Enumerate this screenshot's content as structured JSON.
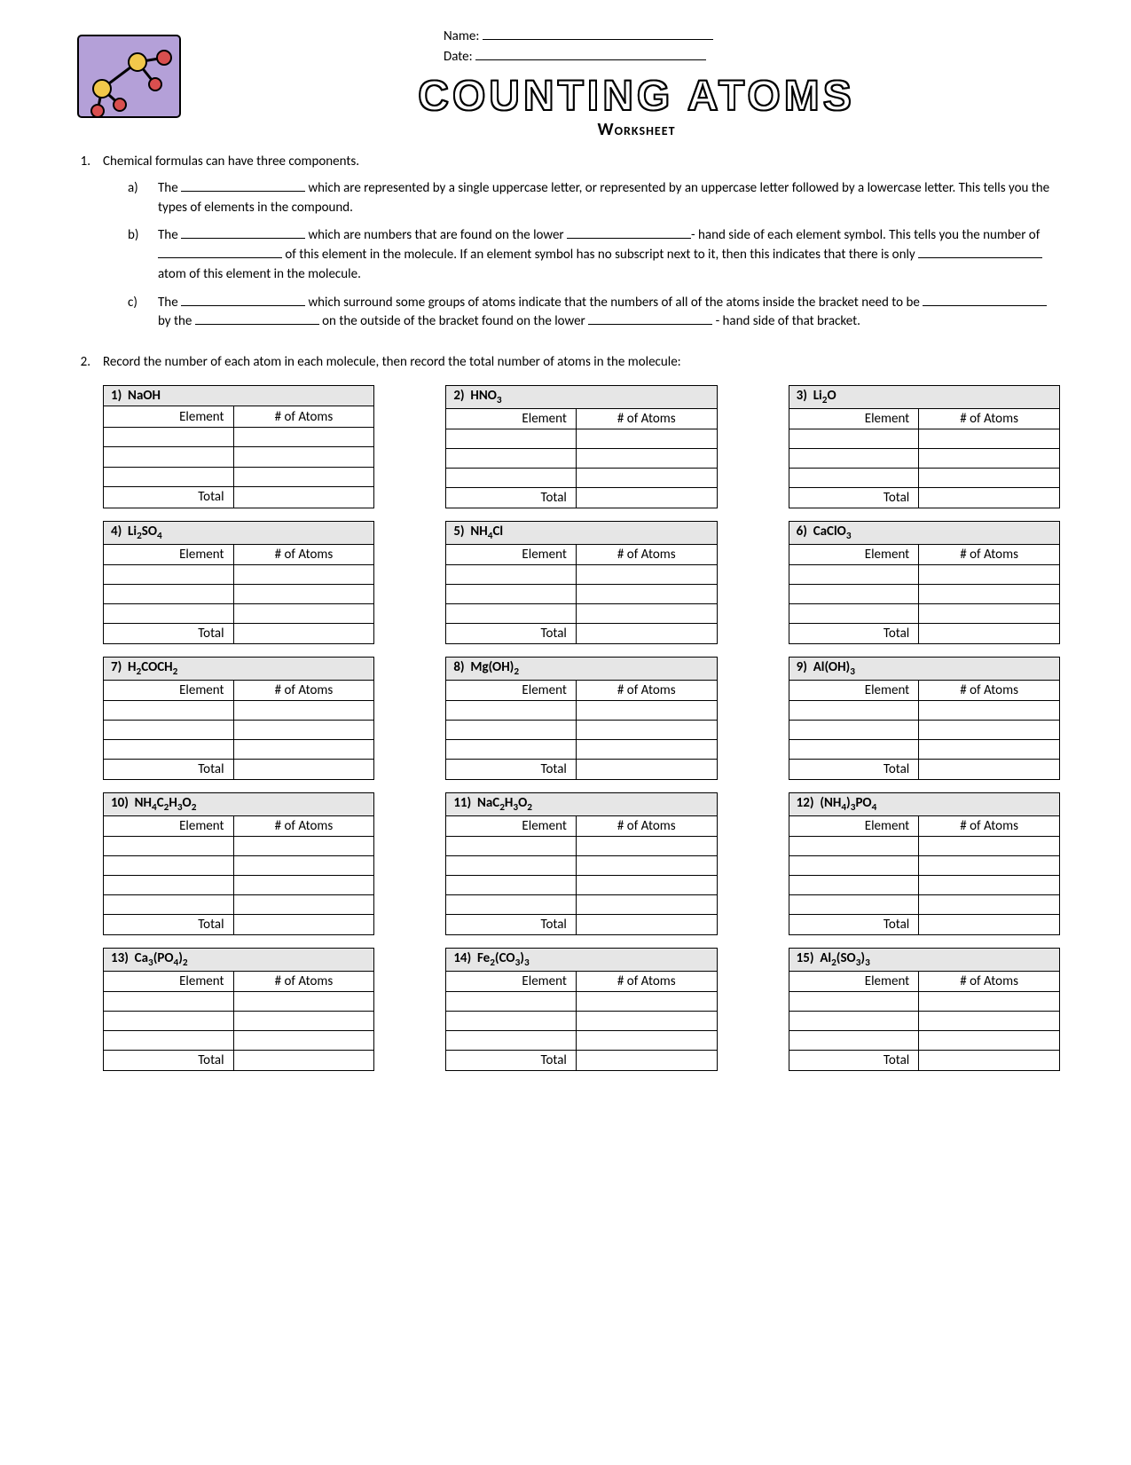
{
  "header": {
    "name_label": "Name:",
    "date_label": "Date:",
    "title": "COUNTING ATOMS",
    "subtitle": "Worksheet"
  },
  "q1": {
    "number": "1.",
    "intro": "Chemical formulas can have three components.",
    "a": {
      "letter": "a)",
      "t1": "The ",
      "t2": " which are represented by a single uppercase letter, or represented by an uppercase letter followed by a lowercase letter.  This tells you the types of elements in the compound."
    },
    "b": {
      "letter": "b)",
      "t1": "The ",
      "t2": " which are numbers that are found on the lower ",
      "t3": "- hand side of each element symbol.  This tells you the number of ",
      "t4": " of this element in the molecule.  If an element symbol has no subscript next to it, then this indicates that there is only ",
      "t5": " atom of this element in the molecule."
    },
    "c": {
      "letter": "c)",
      "t1": "The ",
      "t2": " which surround some groups of atoms indicate that the numbers of all of the atoms inside the bracket need to be ",
      "t3": " by the ",
      "t4": " on the outside of the bracket found on the lower ",
      "t5": " - hand side of that bracket."
    }
  },
  "q2": {
    "number": "2.",
    "text": "Record the number of each atom in each molecule, then record the total number of atoms in the molecule:"
  },
  "table_labels": {
    "element": "Element",
    "atoms": "# of Atoms",
    "total": "Total"
  },
  "molecules": [
    {
      "num": "1)",
      "formula": "NaOH",
      "rows": 3
    },
    {
      "num": "2)",
      "formula": "HNO<sub>3</sub>",
      "rows": 3
    },
    {
      "num": "3)",
      "formula": "Li<sub>2</sub>O",
      "rows": 3
    },
    {
      "num": "4)",
      "formula": "Li<sub>2</sub>SO<sub>4</sub>",
      "rows": 3
    },
    {
      "num": "5)",
      "formula": "NH<sub>4</sub>Cl",
      "rows": 3
    },
    {
      "num": "6)",
      "formula": "CaClO<sub>3</sub>",
      "rows": 3
    },
    {
      "num": "7)",
      "formula": "H<sub>2</sub>COCH<sub>2</sub>",
      "rows": 3
    },
    {
      "num": "8)",
      "formula": "Mg(OH)<sub>2</sub>",
      "rows": 3
    },
    {
      "num": "9)",
      "formula": "Al(OH)<sub>3</sub>",
      "rows": 3
    },
    {
      "num": "10)",
      "formula": "NH<sub>4</sub>C<sub>2</sub>H<sub>3</sub>O<sub>2</sub>",
      "rows": 4
    },
    {
      "num": "11)",
      "formula": "NaC<sub>2</sub>H<sub>3</sub>O<sub>2</sub>",
      "rows": 4
    },
    {
      "num": "12)",
      "formula": "(NH<sub>4</sub>)<sub>3</sub>PO<sub>4</sub>",
      "rows": 4
    },
    {
      "num": "13)",
      "formula": "Ca<sub>3</sub>(PO<sub>4</sub>)<sub>2</sub>",
      "rows": 3
    },
    {
      "num": "14)",
      "formula": "Fe<sub>2</sub>(CO<sub>3</sub>)<sub>3</sub>",
      "rows": 3
    },
    {
      "num": "15)",
      "formula": "Al<sub>2</sub>(SO<sub>3</sub>)<sub>3</sub>",
      "rows": 3
    }
  ],
  "colors": {
    "header_bg": "#e6e6e6",
    "border": "#000000",
    "text": "#000000",
    "page_bg": "#ffffff"
  }
}
